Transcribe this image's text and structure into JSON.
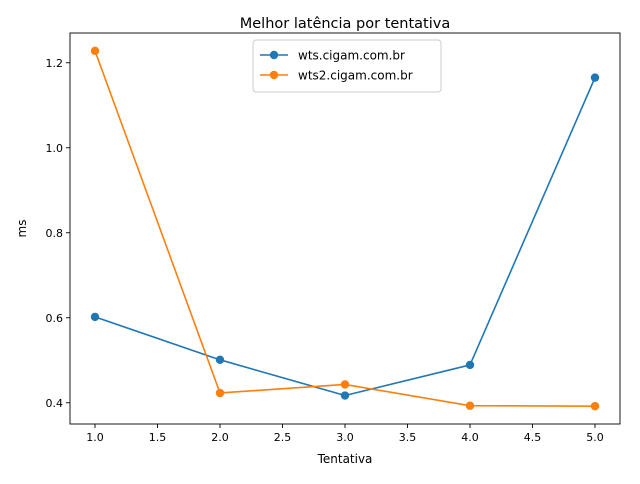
{
  "chart_data": {
    "type": "line",
    "title": "Melhor latência por tentativa",
    "xlabel": "Tentativa",
    "ylabel": "ms",
    "xlim": [
      0.8,
      5.2
    ],
    "ylim": [
      0.35,
      1.27
    ],
    "xticks": [
      1.0,
      1.5,
      2.0,
      2.5,
      3.0,
      3.5,
      4.0,
      4.5,
      5.0
    ],
    "xtick_labels": [
      "1.0",
      "1.5",
      "2.0",
      "2.5",
      "3.0",
      "3.5",
      "4.0",
      "4.5",
      "5.0"
    ],
    "yticks": [
      0.4,
      0.6,
      0.8,
      1.0,
      1.2
    ],
    "ytick_labels": [
      "0.4",
      "0.6",
      "0.8",
      "1.0",
      "1.2"
    ],
    "grid": false,
    "legend_position": "top-center",
    "x": [
      1,
      2,
      3,
      4,
      5
    ],
    "series": [
      {
        "name": "wts.cigam.com.br",
        "color": "#1f77b4",
        "values": [
          0.602,
          0.501,
          0.417,
          0.489,
          1.165
        ]
      },
      {
        "name": "wts2.cigam.com.br",
        "color": "#ff7f0e",
        "values": [
          1.228,
          0.423,
          0.443,
          0.393,
          0.392
        ]
      }
    ]
  }
}
